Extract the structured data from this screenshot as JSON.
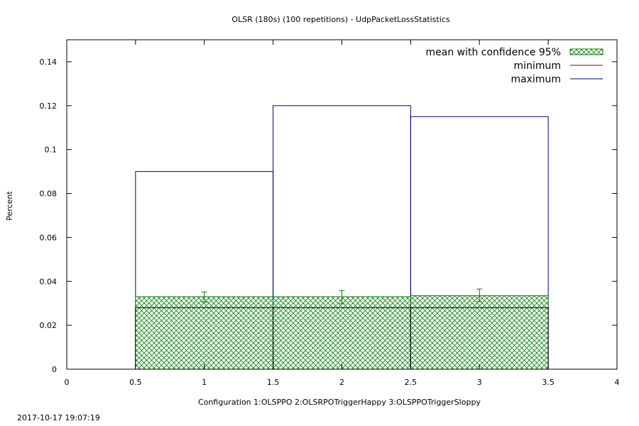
{
  "chart_data": {
    "type": "bar",
    "title": "OLSR (180s) (100 repetitions) - UdpPacketLossStatistics",
    "xlabel": "Configuration 1:OLSPPO  2:OLSRPOTriggerHappy  3:OLSPPOTriggerSloppy",
    "ylabel": "Percent",
    "xlim": [
      0,
      4
    ],
    "ylim": [
      0,
      0.15
    ],
    "xticks": [
      0,
      0.5,
      1,
      1.5,
      2,
      2.5,
      3,
      3.5,
      4
    ],
    "xtick_labels": [
      "0",
      "0.5",
      "1",
      "1.5",
      "2",
      "2.5",
      "3",
      "3.5",
      "4"
    ],
    "yticks": [
      0,
      0.02,
      0.04,
      0.06,
      0.08,
      0.1,
      0.12,
      0.14
    ],
    "ytick_labels": [
      "0",
      "0.02",
      "0.04",
      "0.06",
      "0.08",
      "0.1",
      "0.12",
      "0.14"
    ],
    "categories": [
      1,
      2,
      3
    ],
    "bar_width": 1,
    "series": [
      {
        "name": "mean with confidence 95%",
        "values": [
          0.033,
          0.033,
          0.0335
        ],
        "ci_low": [
          0.0305,
          0.0298,
          0.0308
        ],
        "ci_high": [
          0.0352,
          0.0358,
          0.0365
        ]
      },
      {
        "name": "minimum",
        "values": [
          0.028,
          0.028,
          0.028
        ]
      },
      {
        "name": "maximum",
        "values": [
          0.09,
          0.12,
          0.115
        ]
      }
    ],
    "legend_position": "top-right",
    "grid": false,
    "colors": {
      "mean": "#008000",
      "minimum": "#800000",
      "maximum": "#000080"
    }
  },
  "footer": {
    "timestamp": "2017-10-17 19:07:19"
  }
}
